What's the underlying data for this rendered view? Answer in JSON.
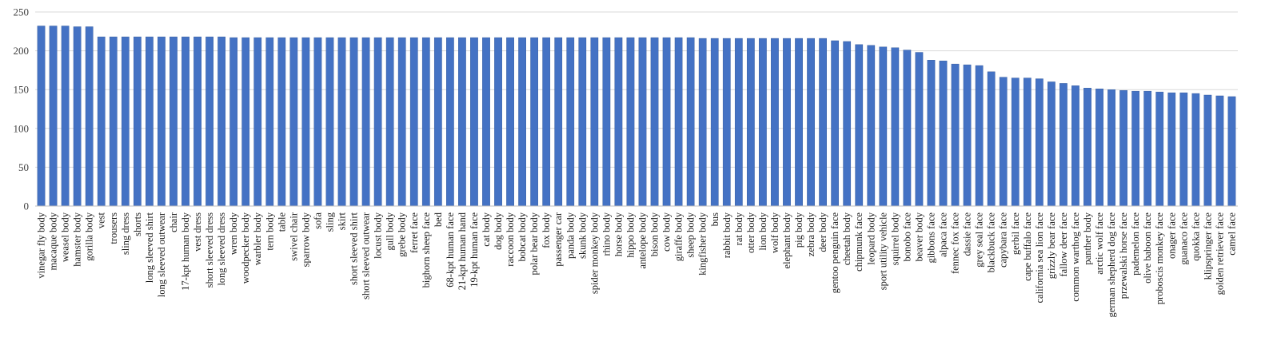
{
  "chart_data": {
    "type": "bar",
    "title": "",
    "xlabel": "",
    "ylabel": "",
    "ylim": [
      0,
      250
    ],
    "yticks": [
      0,
      50,
      100,
      150,
      200,
      250
    ],
    "grid": true,
    "bar_color": "#4472c4",
    "categories": [
      "vinegar fly body",
      "macaque body",
      "weasel body",
      "hamster body",
      "gorilla body",
      "vest",
      "trousers",
      "sling dress",
      "shorts",
      "long sleeved shirt",
      "long sleeved outwear",
      "chair",
      "17-kpt human body",
      "vest dress",
      "short sleeved dress",
      "long sleeved dress",
      "wren body",
      "woodpecker body",
      "warbler body",
      "tern body",
      "table",
      "swivel chair",
      "sparrow body",
      "sofa",
      "sling",
      "skirt",
      "short sleeved shirt",
      "short sleeved outwear",
      "locust body",
      "gull body",
      "grebe body",
      "ferret face",
      "bighorn sheep face",
      "bed",
      "68-kpt human face",
      "21-kpt human hand",
      "19-kpt human face",
      "cat body",
      "dog body",
      "raccoon body",
      "bobcat body",
      "polar bear body",
      "fox body",
      "passenger car",
      "panda body",
      "skunk body",
      "spider monkey body",
      "rhino body",
      "horse body",
      "hippo body",
      "antelope body",
      "bison body",
      "cow body",
      "giraffe body",
      "sheep body",
      "kingfisher body",
      "bus",
      "rabbit body",
      "rat body",
      "otter body",
      "lion body",
      "wolf body",
      "elephant body",
      "pig body",
      "zebra body",
      "deer body",
      "gentoo penguin face",
      "cheetah body",
      "chipmunk face",
      "leopard body",
      "sport utility vehicle",
      "squirrel body",
      "bonobo face",
      "beaver body",
      "gibbons face",
      "alpaca face",
      "fennec fox face",
      "dassie face",
      "grey seal face",
      "blackbuck face",
      "capybara face",
      "gerbil face",
      "cape buffalo face",
      "california sea lion face",
      "grizzly bear face",
      "fallow deer face",
      "common warthog face",
      "panther body",
      "arctic wolf face",
      "german shepherd dog face",
      "przewalski horse face",
      "pademelon face",
      "olive baboon face",
      "proboscis monkey face",
      "onager face",
      "guanaco face",
      "quokka face",
      "klipspringer face",
      "golden retriever face",
      "camel face"
    ],
    "values": [
      232,
      232,
      232,
      231,
      231,
      218,
      218,
      218,
      218,
      218,
      218,
      218,
      218,
      218,
      218,
      218,
      217,
      217,
      217,
      217,
      217,
      217,
      217,
      217,
      217,
      217,
      217,
      217,
      217,
      217,
      217,
      217,
      217,
      217,
      217,
      217,
      217,
      217,
      217,
      217,
      217,
      217,
      217,
      217,
      217,
      217,
      217,
      217,
      217,
      217,
      217,
      217,
      217,
      217,
      217,
      216,
      216,
      216,
      216,
      216,
      216,
      216,
      216,
      216,
      216,
      216,
      213,
      212,
      208,
      207,
      205,
      204,
      201,
      198,
      188,
      187,
      183,
      182,
      181,
      173,
      166,
      165,
      165,
      164,
      160,
      158,
      155,
      152,
      151,
      150,
      149,
      148,
      148,
      147,
      146,
      146,
      145,
      143,
      142,
      141
    ]
  }
}
